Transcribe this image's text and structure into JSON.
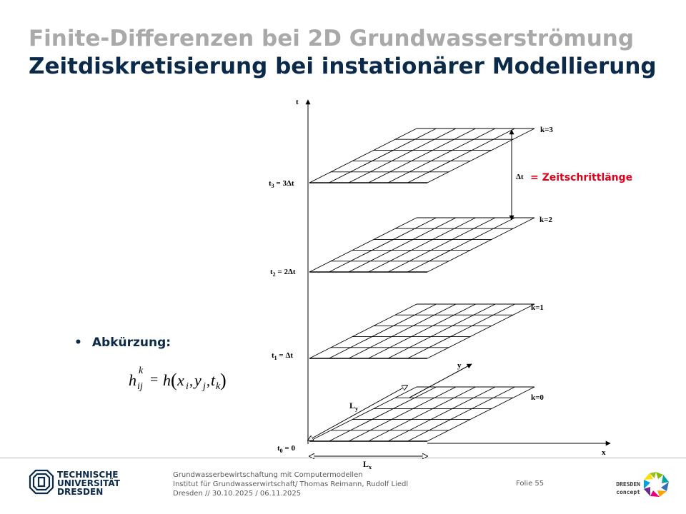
{
  "slide": {
    "title_line1": "Finite-Differenzen bei 2D Grundwasserströmung",
    "title_line2": "Zeitdiskretisierung bei instationärer Modellierung",
    "bullet_label": "Abkürzung:"
  },
  "formula": {
    "h1": "h",
    "sup_k": "k",
    "sub_ij": "ij",
    "eq": "=",
    "h2": "h",
    "paren_open": "(",
    "x": "x",
    "sub_i": "i",
    "comma1": ",",
    "y": "y",
    "sub_j": "j",
    "comma2": ",",
    "t": "t",
    "sub_k": "k",
    "paren_close": ")"
  },
  "diagram": {
    "axis_t": "t",
    "axis_x": "x",
    "axis_y": "y",
    "levels": [
      {
        "k_label": "k=0",
        "t_main": "t",
        "t_sub": "0",
        "t_rest": " = 0"
      },
      {
        "k_label": "k=1",
        "t_main": "t",
        "t_sub": "1",
        "t_rest": " = Δt"
      },
      {
        "k_label": "k=2",
        "t_main": "t",
        "t_sub": "2",
        "t_rest": " = 2Δt"
      },
      {
        "k_label": "k=3",
        "t_main": "t",
        "t_sub": "3",
        "t_rest": " = 3Δt"
      }
    ],
    "delta_t_symbol": "Δt",
    "delta_t_text": "= Zeitschrittlänge",
    "lx_main": "L",
    "lx_sub": "x",
    "ly_main": "L",
    "ly_sub": "y"
  },
  "footer": {
    "logo_line1": "TECHNISCHE",
    "logo_line2": "UNIVERSITÄT",
    "logo_line3": "DRESDEN",
    "line1": "Grundwasserbewirtschaftung mit Computermodellen",
    "line2": "Institut für Grundwasserwirtschaft/ Thomas Reimann, Rudolf Liedl",
    "line3": "Dresden // 30.10.2025 / 06.11.2025",
    "folie_label": "Folie",
    "folie_number": "55",
    "dc_line1": "DRESDEN",
    "dc_line2": "concept"
  },
  "colors": {
    "title_gray": "#a9a9a9",
    "title_blue": "#0b2a4a",
    "accent_red": "#e2001a"
  }
}
